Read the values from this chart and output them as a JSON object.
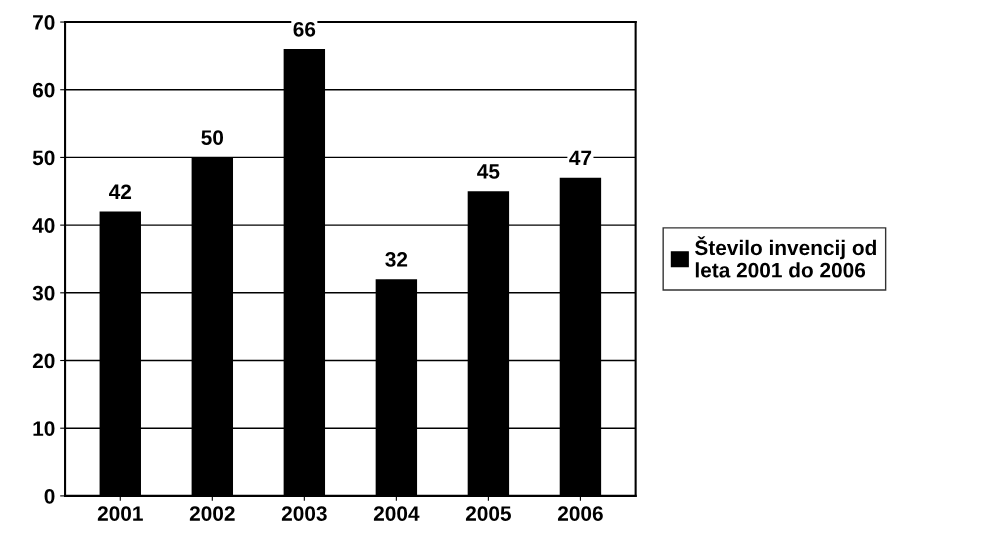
{
  "chart_data": {
    "type": "bar",
    "categories": [
      "2001",
      "2002",
      "2003",
      "2004",
      "2005",
      "2006"
    ],
    "series": [
      {
        "name": "Število invencij od leta 2001 do 2006",
        "color": "#000000",
        "values": [
          42,
          50,
          66,
          32,
          45,
          47
        ]
      }
    ],
    "ylim": [
      0,
      70
    ],
    "yticks": [
      0,
      10,
      20,
      30,
      40,
      50,
      60,
      70
    ],
    "grid": "y",
    "legend": "right",
    "data_labels": true
  }
}
